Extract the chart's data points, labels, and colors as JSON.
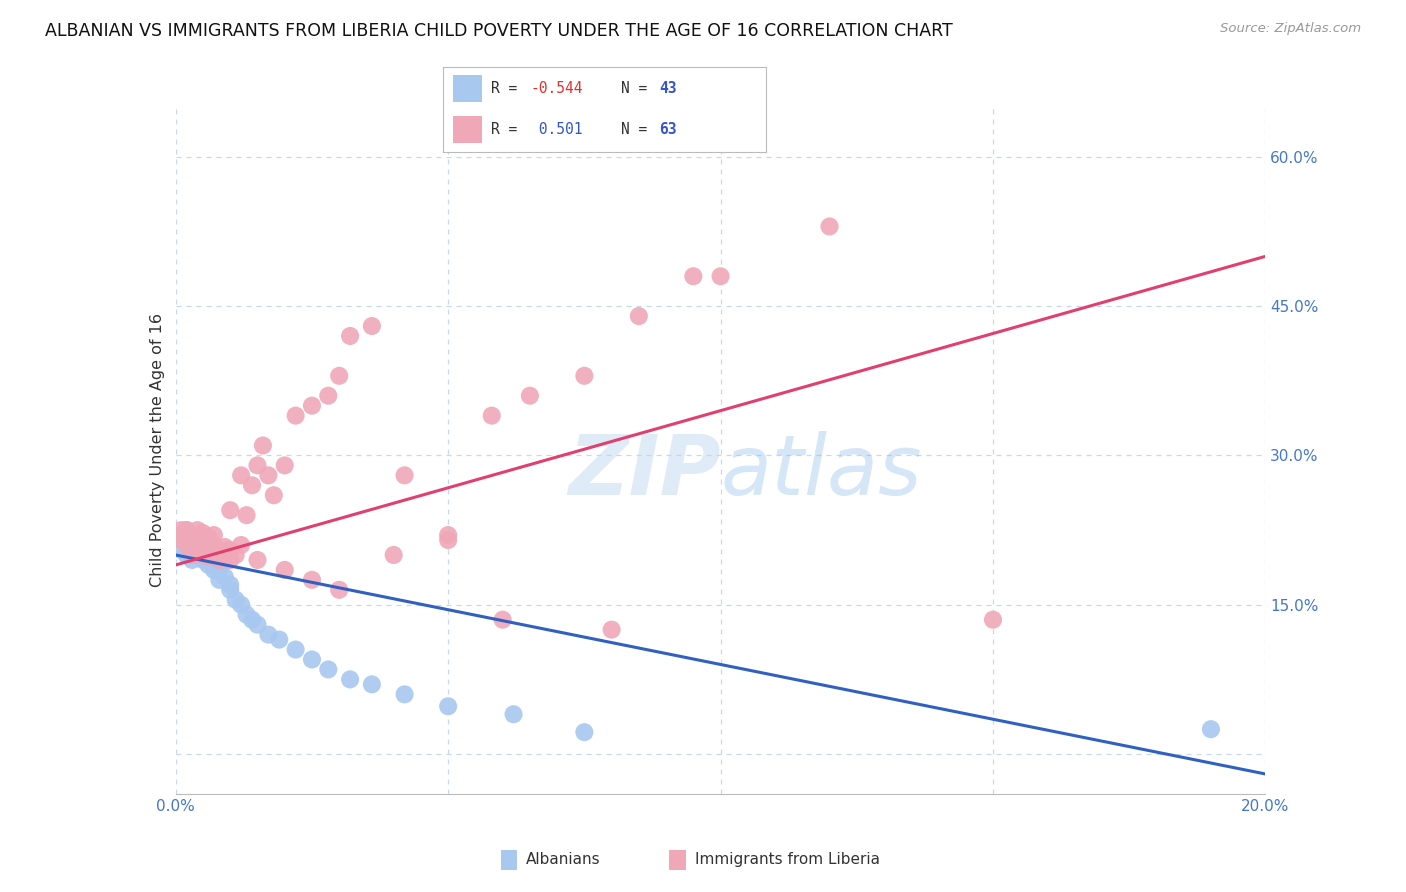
{
  "title": "ALBANIAN VS IMMIGRANTS FROM LIBERIA CHILD POVERTY UNDER THE AGE OF 16 CORRELATION CHART",
  "source": "Source: ZipAtlas.com",
  "ylabel": "Child Poverty Under the Age of 16",
  "xlim": [
    0.0,
    0.2
  ],
  "ylim": [
    -0.04,
    0.65
  ],
  "yticks": [
    0.0,
    0.15,
    0.3,
    0.45,
    0.6
  ],
  "xticks": [
    0.0,
    0.05,
    0.1,
    0.15,
    0.2
  ],
  "blue_color": "#a8c8f0",
  "pink_color": "#f0a8b8",
  "blue_line_color": "#3060c0",
  "pink_line_color": "#e04070",
  "background_color": "#ffffff",
  "grid_color": "#c8d8ec",
  "albanians_x": [
    0.001,
    0.001,
    0.001,
    0.002,
    0.002,
    0.002,
    0.002,
    0.003,
    0.003,
    0.003,
    0.003,
    0.004,
    0.004,
    0.004,
    0.005,
    0.005,
    0.005,
    0.006,
    0.006,
    0.007,
    0.007,
    0.008,
    0.008,
    0.009,
    0.01,
    0.01,
    0.011,
    0.012,
    0.013,
    0.014,
    0.015,
    0.017,
    0.019,
    0.022,
    0.025,
    0.028,
    0.032,
    0.036,
    0.042,
    0.05,
    0.062,
    0.075,
    0.19
  ],
  "albanians_y": [
    0.205,
    0.215,
    0.22,
    0.2,
    0.21,
    0.22,
    0.225,
    0.195,
    0.205,
    0.215,
    0.218,
    0.2,
    0.208,
    0.215,
    0.195,
    0.205,
    0.21,
    0.19,
    0.2,
    0.185,
    0.195,
    0.175,
    0.185,
    0.178,
    0.165,
    0.17,
    0.155,
    0.15,
    0.14,
    0.135,
    0.13,
    0.12,
    0.115,
    0.105,
    0.095,
    0.085,
    0.075,
    0.07,
    0.06,
    0.048,
    0.04,
    0.022,
    0.025
  ],
  "liberia_x": [
    0.001,
    0.001,
    0.001,
    0.002,
    0.002,
    0.002,
    0.003,
    0.003,
    0.003,
    0.004,
    0.004,
    0.004,
    0.005,
    0.005,
    0.005,
    0.005,
    0.006,
    0.006,
    0.006,
    0.007,
    0.007,
    0.007,
    0.008,
    0.008,
    0.009,
    0.009,
    0.01,
    0.01,
    0.011,
    0.012,
    0.012,
    0.013,
    0.014,
    0.015,
    0.016,
    0.017,
    0.018,
    0.02,
    0.022,
    0.025,
    0.028,
    0.03,
    0.032,
    0.036,
    0.042,
    0.05,
    0.058,
    0.065,
    0.075,
    0.085,
    0.095,
    0.01,
    0.015,
    0.02,
    0.025,
    0.03,
    0.04,
    0.05,
    0.06,
    0.08,
    0.1,
    0.12,
    0.15
  ],
  "liberia_y": [
    0.215,
    0.22,
    0.225,
    0.21,
    0.218,
    0.225,
    0.2,
    0.21,
    0.22,
    0.205,
    0.215,
    0.225,
    0.2,
    0.208,
    0.215,
    0.222,
    0.198,
    0.208,
    0.218,
    0.2,
    0.21,
    0.22,
    0.195,
    0.205,
    0.198,
    0.208,
    0.195,
    0.205,
    0.2,
    0.21,
    0.28,
    0.24,
    0.27,
    0.29,
    0.31,
    0.28,
    0.26,
    0.29,
    0.34,
    0.35,
    0.36,
    0.38,
    0.42,
    0.43,
    0.28,
    0.22,
    0.34,
    0.36,
    0.38,
    0.44,
    0.48,
    0.245,
    0.195,
    0.185,
    0.175,
    0.165,
    0.2,
    0.215,
    0.135,
    0.125,
    0.48,
    0.53,
    0.135
  ]
}
